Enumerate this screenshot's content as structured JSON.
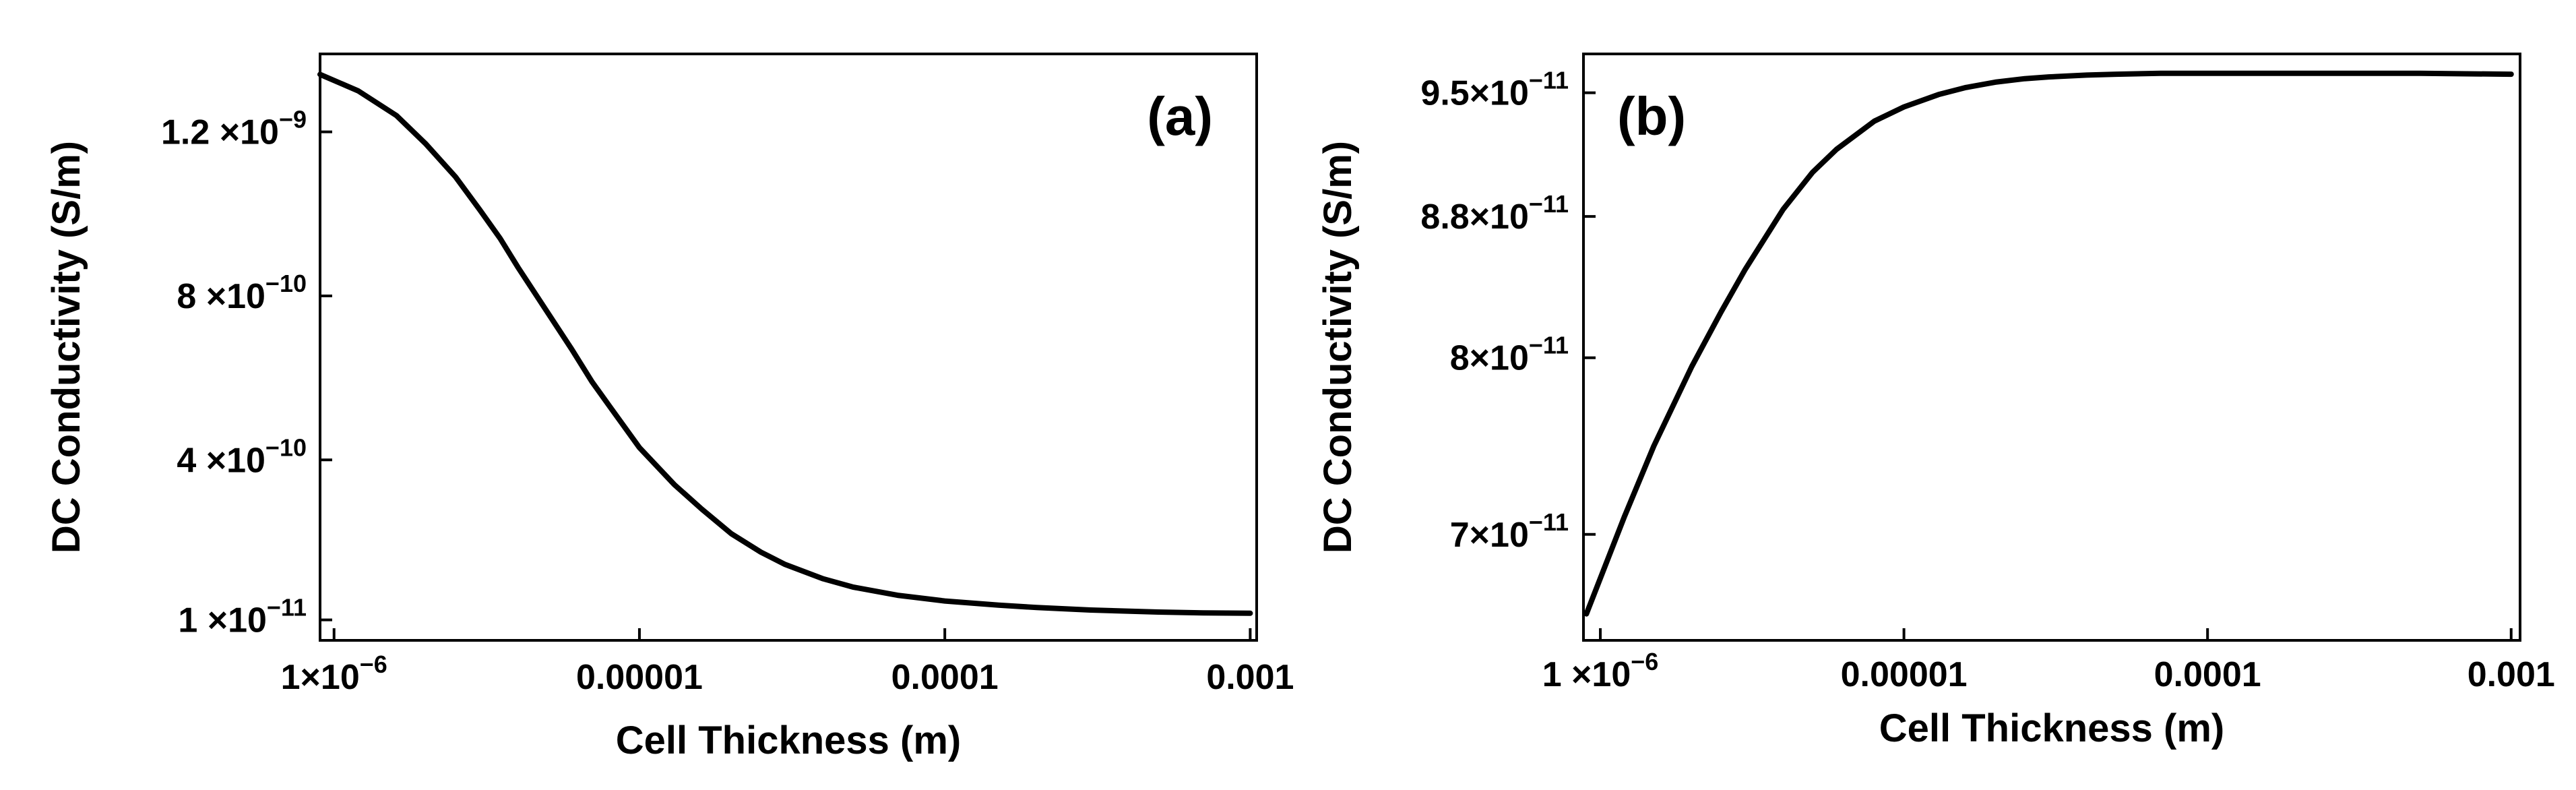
{
  "chart_data": [
    {
      "panel": "(a)",
      "type": "line",
      "xlabel": "Cell Thickness (m)",
      "ylabel": "DC Conductivity (S/m)",
      "xscale": "log",
      "yscale": "linear",
      "xlim": [
        9e-07,
        0.00105
      ],
      "ylim": [
        -4e-11,
        1.39e-09
      ],
      "xticks": [
        {
          "value": 1e-06,
          "label": "1×10",
          "exp": "−6"
        },
        {
          "value": 1e-05,
          "label": "0.00001",
          "exp": ""
        },
        {
          "value": 0.0001,
          "label": "0.0001",
          "exp": ""
        },
        {
          "value": 0.001,
          "label": "0.001",
          "exp": ""
        }
      ],
      "yticks": [
        {
          "value": 1e-11,
          "label": "1 ×10",
          "exp": "−11"
        },
        {
          "value": 4e-10,
          "label": "4 ×10",
          "exp": "−10"
        },
        {
          "value": 8e-10,
          "label": "8 ×10",
          "exp": "−10"
        },
        {
          "value": 1.2e-09,
          "label": "1.2 ×10",
          "exp": "−9"
        }
      ],
      "series": [
        {
          "x": [
            9e-07,
            1.2e-06,
            1.6e-06,
            2e-06,
            2.5e-06,
            3e-06,
            3.5e-06,
            4e-06,
            5e-06,
            6e-06,
            7e-06,
            8e-06,
            1e-05,
            1.3e-05,
            1.6e-05,
            2e-05,
            2.5e-05,
            3e-05,
            4e-05,
            5e-05,
            7e-05,
            0.0001,
            0.00015,
            0.0002,
            0.0003,
            0.0005,
            0.0007,
            0.001
          ],
          "y": [
            1.34e-09,
            1.3e-09,
            1.24e-09,
            1.17e-09,
            1.09e-09,
            1.01e-09,
            9.4e-10,
            8.7e-10,
            7.6e-10,
            6.7e-10,
            5.9e-10,
            5.3e-10,
            4.3e-10,
            3.4e-10,
            2.8e-10,
            2.2e-10,
            1.75e-10,
            1.45e-10,
            1.1e-10,
            9e-11,
            7e-11,
            5.6e-11,
            4.6e-11,
            4e-11,
            3.4e-11,
            2.9e-11,
            2.7e-11,
            2.6e-11
          ]
        }
      ]
    },
    {
      "panel": "(b)",
      "type": "line",
      "xlabel": "Cell Thickness (m)",
      "ylabel": "DC Conductivity (S/m)",
      "xscale": "log",
      "yscale": "linear",
      "xlim": [
        8.8e-07,
        0.00107
      ],
      "ylim": [
        6.4e-11,
        9.72e-11
      ],
      "xticks": [
        {
          "value": 1e-06,
          "label": "1 ×10",
          "exp": "−6"
        },
        {
          "value": 1e-05,
          "label": "0.00001",
          "exp": ""
        },
        {
          "value": 0.0001,
          "label": "0.0001",
          "exp": ""
        },
        {
          "value": 0.001,
          "label": "0.001",
          "exp": ""
        }
      ],
      "yticks": [
        {
          "value": 7e-11,
          "label": "7×10",
          "exp": "−11"
        },
        {
          "value": 8e-11,
          "label": "8×10",
          "exp": "−11"
        },
        {
          "value": 8.8e-11,
          "label": "8.8×10",
          "exp": "−11"
        },
        {
          "value": 9.5e-11,
          "label": "9.5×10",
          "exp": "−11"
        }
      ],
      "series": [
        {
          "x": [
            9e-07,
            1.2e-06,
            1.5e-06,
            2e-06,
            2.5e-06,
            3e-06,
            4e-06,
            5e-06,
            6e-06,
            8e-06,
            1e-05,
            1.3e-05,
            1.6e-05,
            2e-05,
            2.5e-05,
            3e-05,
            4e-05,
            5e-05,
            7e-05,
            0.0001,
            0.0002,
            0.0005,
            0.001
          ],
          "y": [
            6.55e-11,
            7.1e-11,
            7.5e-11,
            7.95e-11,
            8.26e-11,
            8.5e-11,
            8.84e-11,
            9.05e-11,
            9.18e-11,
            9.34e-11,
            9.42e-11,
            9.49e-11,
            9.53e-11,
            9.56e-11,
            9.58e-11,
            9.59e-11,
            9.6e-11,
            9.605e-11,
            9.61e-11,
            9.61e-11,
            9.61e-11,
            9.61e-11,
            9.605e-11
          ]
        }
      ]
    }
  ]
}
